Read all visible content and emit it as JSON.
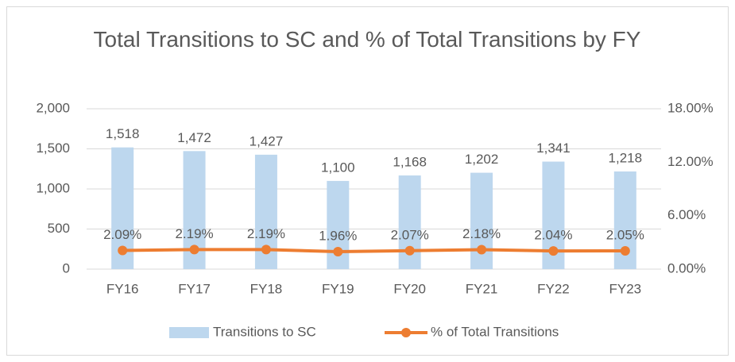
{
  "chart_data": {
    "type": "bar",
    "title": "Total Transitions to SC and % of Total Transitions by FY",
    "categories": [
      "FY16",
      "FY17",
      "FY18",
      "FY19",
      "FY20",
      "FY21",
      "FY22",
      "FY23"
    ],
    "series": [
      {
        "name": "Transitions to SC",
        "type": "bar",
        "color": "#bdd7ee",
        "values": [
          1518,
          1472,
          1427,
          1100,
          1168,
          1202,
          1341,
          1218
        ],
        "value_labels": [
          "1,518",
          "1,472",
          "1,427",
          "1,100",
          "1,168",
          "1,202",
          "1,341",
          "1,218"
        ]
      },
      {
        "name": "% of Total Transitions",
        "type": "line",
        "axis": "y2",
        "color": "#ed7d31",
        "values": [
          2.09,
          2.19,
          2.19,
          1.96,
          2.07,
          2.18,
          2.04,
          2.05
        ],
        "value_labels": [
          "2.09%",
          "2.19%",
          "2.19%",
          "1.96%",
          "2.07%",
          "2.18%",
          "2.04%",
          "2.05%"
        ]
      }
    ],
    "ylim": [
      0,
      2000
    ],
    "yticks": [
      0,
      500,
      {
        "value": 1000,
        "label": "1,000"
      },
      {
        "value": 1500,
        "label": "1,500"
      },
      {
        "value": 2000,
        "label": "2,000"
      }
    ],
    "y2lim": [
      0,
      18
    ],
    "y2ticks": [
      {
        "value": 0,
        "label": "0.00%"
      },
      {
        "value": 6,
        "label": "6.00%"
      },
      {
        "value": 12,
        "label": "12.00%"
      },
      {
        "value": 18,
        "label": "18.00%"
      }
    ],
    "grid": true,
    "legend": "bottom"
  }
}
